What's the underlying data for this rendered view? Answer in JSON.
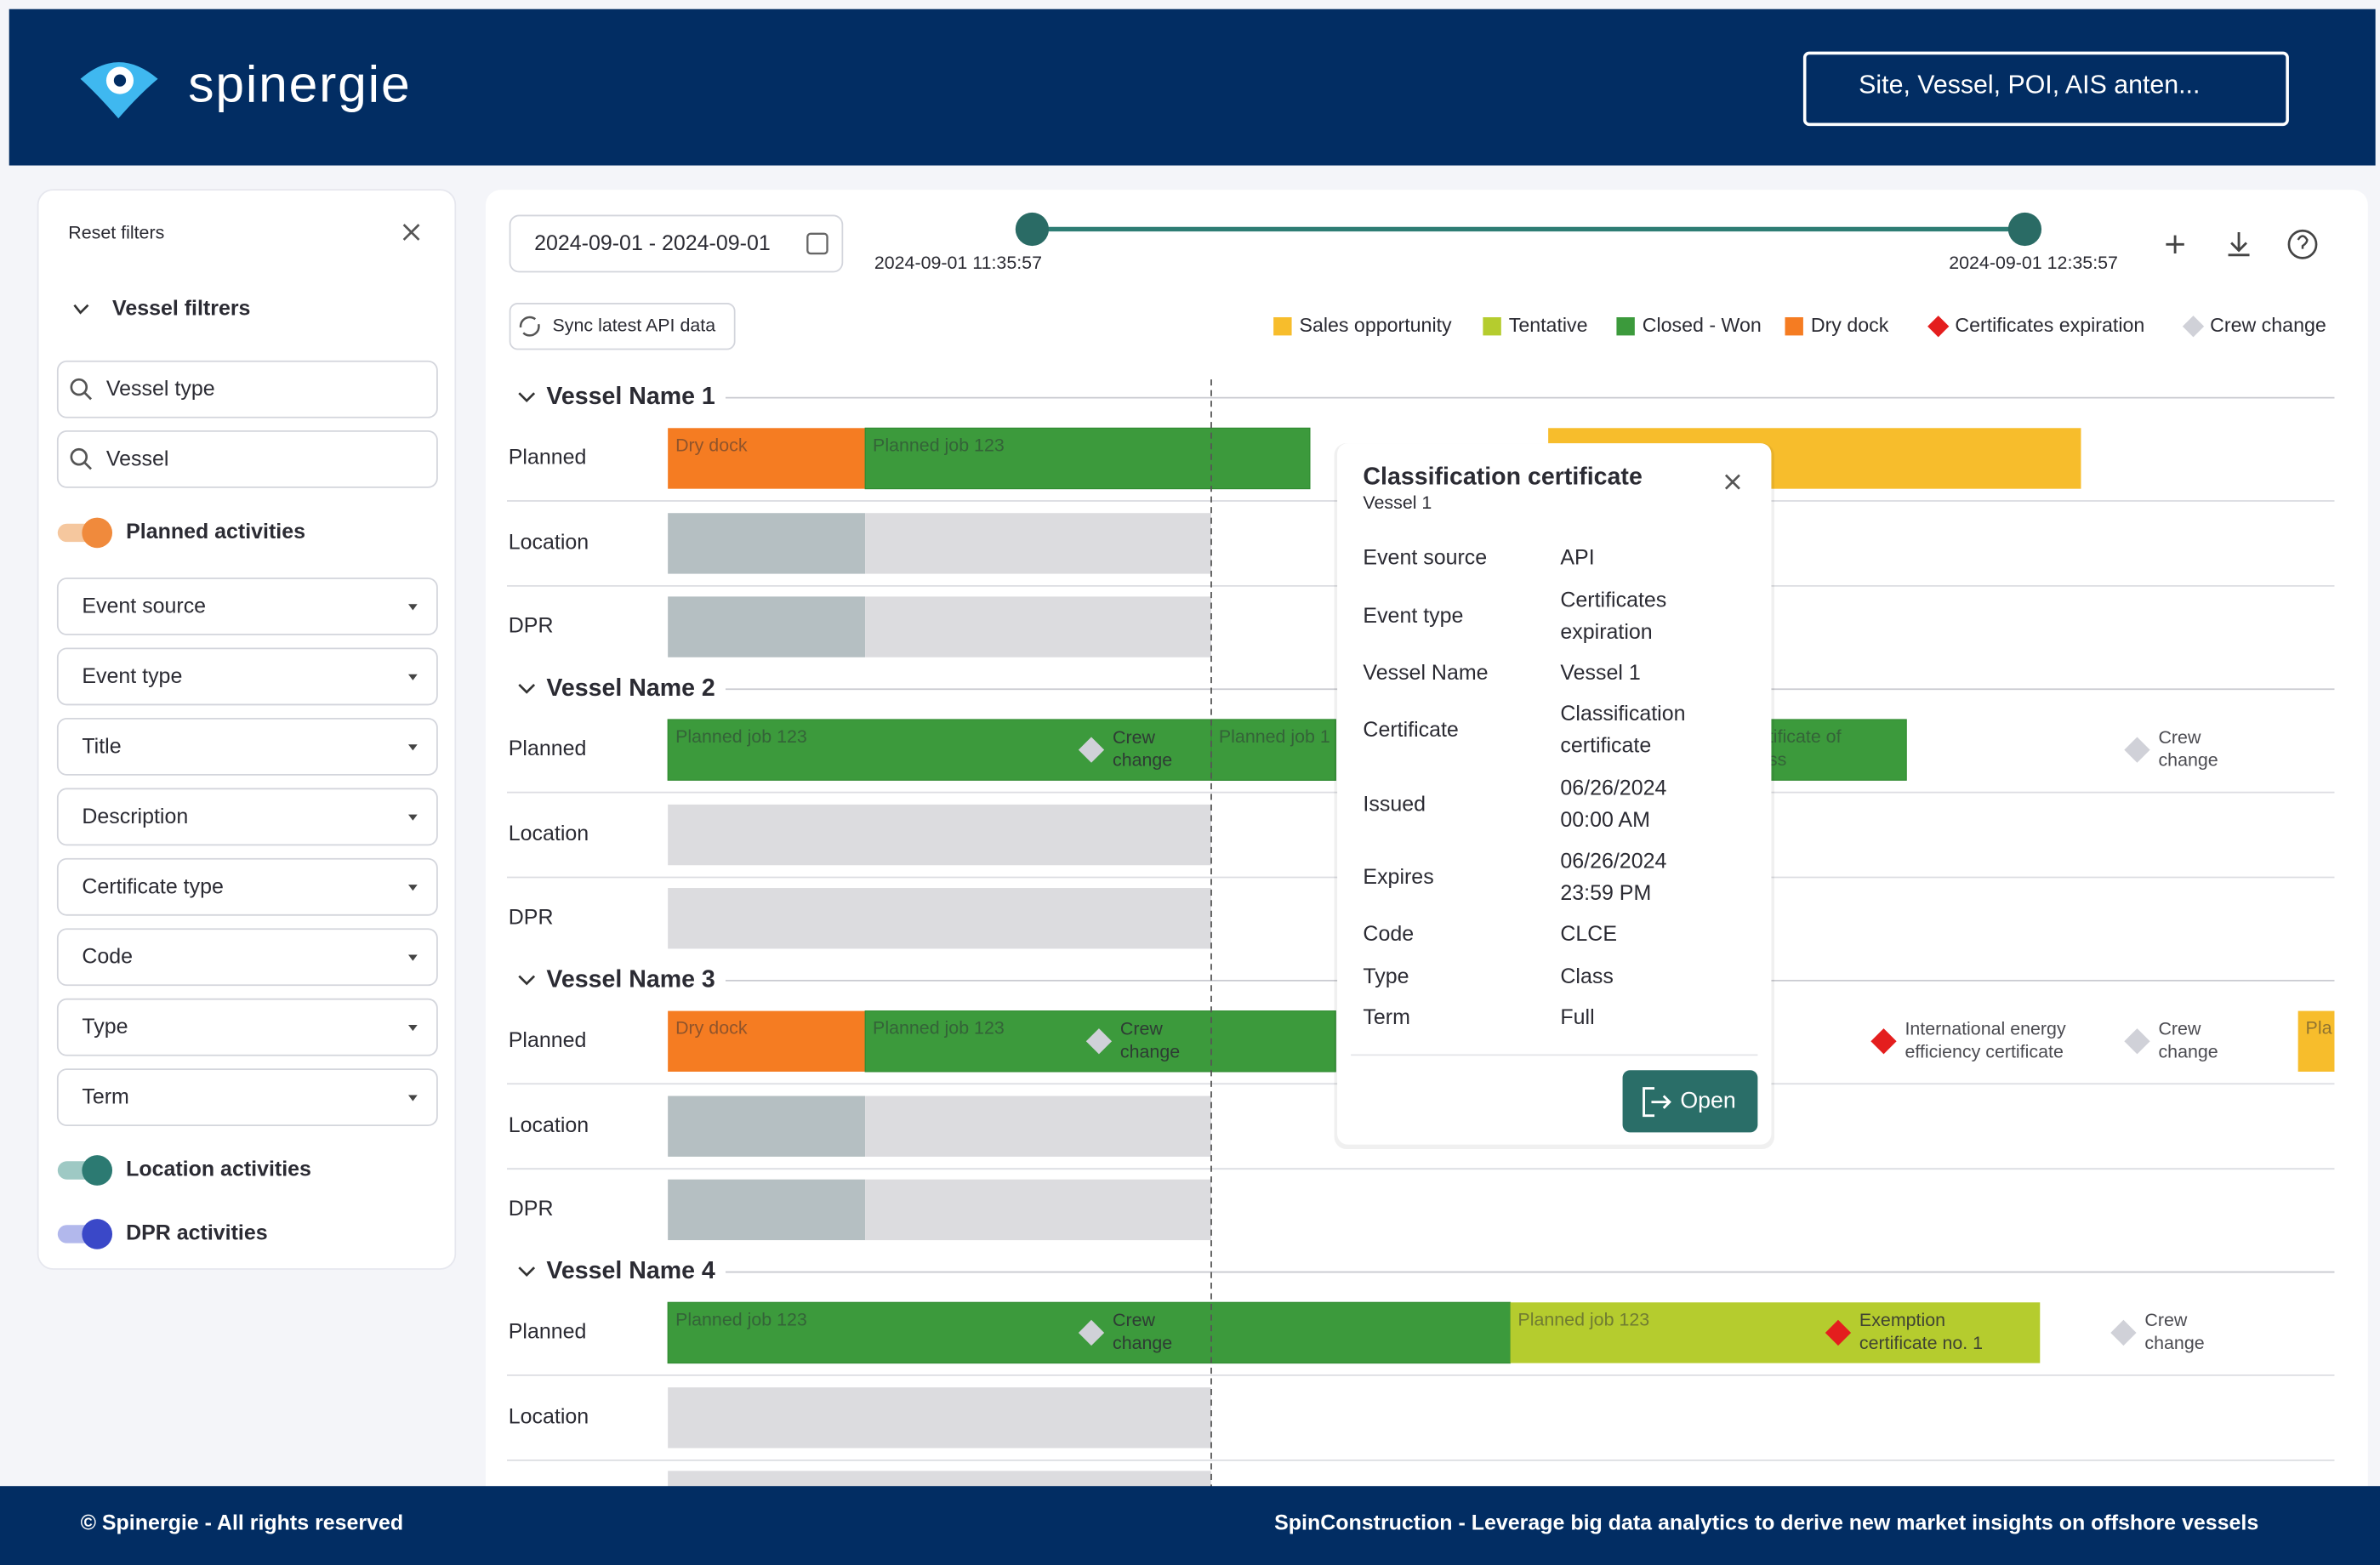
{
  "header": {
    "logo": "spinergie",
    "search_placeholder": "Site, Vessel, POI, AIS anten..."
  },
  "sidebar": {
    "reset": "Reset filters",
    "section": "Vessel filtrers",
    "search_fields": [
      "Vessel type",
      "Vessel"
    ],
    "toggles": [
      "Planned activities",
      "Location activities",
      "DPR activities"
    ],
    "dropdowns": [
      "Event source",
      "Event type",
      "Title",
      "Description",
      "Certificate type",
      "Code",
      "Type",
      "Term"
    ]
  },
  "toolbar": {
    "date_range": "2024-09-01 - 2024-09-01",
    "range_start": "2024-09-01 11:35:57",
    "range_end": "2024-09-01 12:35:57",
    "sync": "Sync latest API data"
  },
  "legend": [
    "Sales opportunity",
    "Tentative",
    "Closed - Won",
    "Dry dock",
    "Certificates expiration",
    "Crew change"
  ],
  "vessels": [
    {
      "name": "Vessel Name 1",
      "rows": [
        "Planned",
        "Location",
        "DPR"
      ],
      "events": [
        [
          "Dry dock"
        ],
        [
          "Planned job 123"
        ]
      ]
    },
    {
      "name": "Vessel Name 2",
      "rows": [
        "Planned",
        "Location",
        "DPR"
      ],
      "events": [
        [
          "Planned job 123"
        ],
        [
          "Crew",
          "change"
        ],
        [
          "Planned job 1"
        ],
        [
          "tificate of",
          "ss"
        ],
        [
          "Crew",
          "change"
        ]
      ]
    },
    {
      "name": "Vessel Name 3",
      "rows": [
        "Planned",
        "Location",
        "DPR"
      ],
      "events": [
        [
          "Dry dock"
        ],
        [
          "Planned job 123"
        ],
        [
          "Crew",
          "change"
        ],
        [
          "International energy",
          "efficiency certificate"
        ],
        [
          "Crew",
          "change"
        ],
        [
          "Pla"
        ]
      ]
    },
    {
      "name": "Vessel Name 4",
      "rows": [
        "Planned",
        "Location"
      ],
      "events": [
        [
          "Planned job 123"
        ],
        [
          "Crew",
          "change"
        ],
        [
          "Planned job 123"
        ],
        [
          "Exemption",
          "certificate no. 1"
        ],
        [
          "Crew",
          "change"
        ]
      ]
    }
  ],
  "popup": {
    "title": "Classification certificate",
    "subtitle": "Vessel 1",
    "fields": [
      {
        "label": "Event source",
        "value": [
          "API"
        ]
      },
      {
        "label": "Event type",
        "value": [
          "Certificates",
          "expiration"
        ]
      },
      {
        "label": "Vessel Name",
        "value": [
          "Vessel 1"
        ]
      },
      {
        "label": "Certificate",
        "value": [
          "Classification",
          "certificate"
        ]
      },
      {
        "label": "Issued",
        "value": [
          "06/26/2024",
          "00:00 AM"
        ]
      },
      {
        "label": "Expires",
        "value": [
          "06/26/2024",
          "23:59 PM"
        ]
      },
      {
        "label": "Code",
        "value": [
          "CLCE"
        ]
      },
      {
        "label": "Type",
        "value": [
          "Class"
        ]
      },
      {
        "label": "Term",
        "value": [
          "Full"
        ]
      }
    ],
    "button": "Open"
  },
  "footer": {
    "left": "© Spinergie - All rights reserved",
    "right": "SpinConstruction - Leverage big data analytics to derive new market insights on offshore vessels"
  }
}
